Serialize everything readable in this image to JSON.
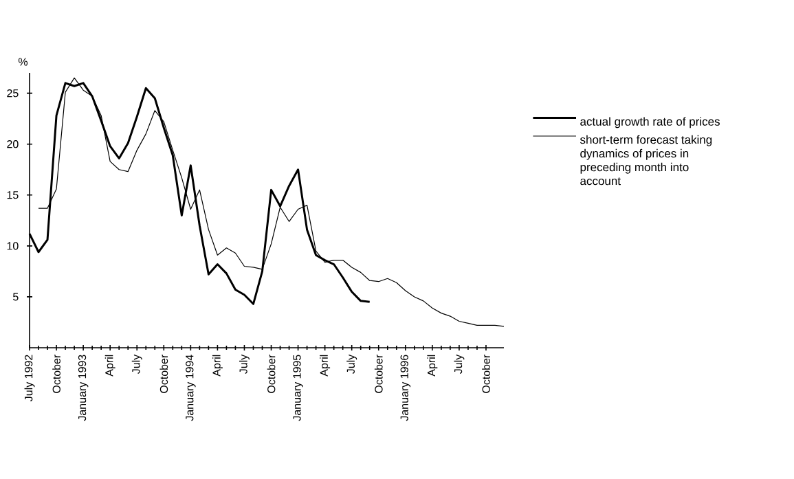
{
  "chart_data": {
    "type": "line",
    "ylabel": "%",
    "legend": "right",
    "x": [
      "1992-07",
      "1992-08",
      "1992-09",
      "1992-10",
      "1992-11",
      "1992-12",
      "1993-01",
      "1993-02",
      "1993-03",
      "1993-04",
      "1993-05",
      "1993-06",
      "1993-07",
      "1993-08",
      "1993-09",
      "1993-10",
      "1993-11",
      "1993-12",
      "1994-01",
      "1994-02",
      "1994-03",
      "1994-04",
      "1994-05",
      "1994-06",
      "1994-07",
      "1994-08",
      "1994-09",
      "1994-10",
      "1994-11",
      "1994-12",
      "1995-01",
      "1995-02",
      "1995-03",
      "1995-04",
      "1995-05",
      "1995-06",
      "1995-07",
      "1995-08",
      "1995-09",
      "1995-10",
      "1995-11",
      "1995-12",
      "1996-01",
      "1996-02",
      "1996-03",
      "1996-04",
      "1996-05",
      "1996-06",
      "1996-07",
      "1996-08",
      "1996-09",
      "1996-10",
      "1996-11",
      "1996-12"
    ],
    "series": [
      {
        "name": "actual growth rate of prices",
        "color": "#000000",
        "values": [
          11.2,
          9.4,
          10.6,
          22.8,
          26.0,
          25.7,
          26.0,
          24.7,
          22.3,
          19.8,
          18.6,
          20.1,
          22.7,
          25.5,
          24.5,
          21.6,
          18.9,
          13.0,
          17.9,
          12.0,
          7.2,
          8.2,
          7.3,
          5.7,
          5.2,
          4.3,
          7.5,
          15.5,
          13.9,
          15.9,
          17.5,
          11.6,
          9.1,
          8.6,
          8.2,
          6.9,
          5.5,
          4.6,
          4.5,
          null,
          null,
          null,
          null,
          null,
          null,
          null,
          null,
          null,
          null,
          null,
          null,
          null,
          null,
          null
        ]
      },
      {
        "name": "short-term forecast taking dynamics of prices in preceding month into account",
        "color": "#000000",
        "values": [
          null,
          13.7,
          13.7,
          15.6,
          25.1,
          26.5,
          25.3,
          24.7,
          22.8,
          18.3,
          17.5,
          17.3,
          19.4,
          21.0,
          23.3,
          22.2,
          19.4,
          16.7,
          13.6,
          15.5,
          11.6,
          9.1,
          9.8,
          9.3,
          8.0,
          7.9,
          7.7,
          10.2,
          13.8,
          12.4,
          13.6,
          14.0,
          9.5,
          8.4,
          8.6,
          8.6,
          7.9,
          7.4,
          6.6,
          6.5,
          6.8,
          6.4,
          5.6,
          5.0,
          4.6,
          3.9,
          3.4,
          3.1,
          2.6,
          2.4,
          2.2,
          2.2,
          2.2,
          2.1
        ]
      }
    ],
    "xlim": [
      "1992-07",
      "1996-12"
    ],
    "xticks": [
      {
        "value": "1992-07",
        "label": "July 1992"
      },
      {
        "value": "1992-10",
        "label": "October"
      },
      {
        "value": "1993-01",
        "label": "January 1993"
      },
      {
        "value": "1993-04",
        "label": "April"
      },
      {
        "value": "1993-07",
        "label": "July"
      },
      {
        "value": "1993-10",
        "label": "October"
      },
      {
        "value": "1994-01",
        "label": "January 1994"
      },
      {
        "value": "1994-04",
        "label": "April"
      },
      {
        "value": "1994-07",
        "label": "July"
      },
      {
        "value": "1994-10",
        "label": "October"
      },
      {
        "value": "1995-01",
        "label": "January 1995"
      },
      {
        "value": "1995-04",
        "label": "April"
      },
      {
        "value": "1995-07",
        "label": "July"
      },
      {
        "value": "1995-10",
        "label": "October"
      },
      {
        "value": "1996-01",
        "label": "January 1996"
      },
      {
        "value": "1996-04",
        "label": "April"
      },
      {
        "value": "1996-07",
        "label": "July"
      },
      {
        "value": "1996-10",
        "label": "October"
      }
    ],
    "ylim": [
      0,
      27
    ],
    "yticks": [
      5,
      10,
      15,
      20,
      25
    ]
  }
}
